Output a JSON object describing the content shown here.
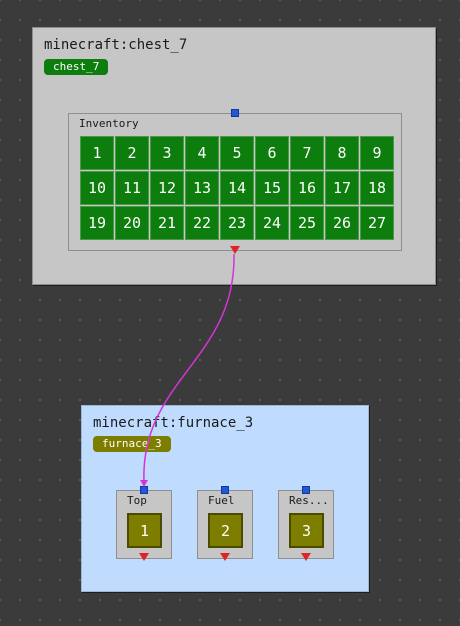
{
  "chest": {
    "title": "minecraft:chest_7",
    "tag": "chest_7",
    "inventory_label": "Inventory",
    "slots": [
      "1",
      "2",
      "3",
      "4",
      "5",
      "6",
      "7",
      "8",
      "9",
      "10",
      "11",
      "12",
      "13",
      "14",
      "15",
      "16",
      "17",
      "18",
      "19",
      "20",
      "21",
      "22",
      "23",
      "24",
      "25",
      "26",
      "27"
    ]
  },
  "furnace": {
    "title": "minecraft:furnace_3",
    "tag": "furnace_3",
    "slots": [
      {
        "label": "Top",
        "value": "1"
      },
      {
        "label": "Fuel",
        "value": "2"
      },
      {
        "label": "Res...",
        "value": "3"
      }
    ]
  },
  "colors": {
    "chest_slot": "#0d7d0d",
    "furnace_slot": "#7d7d00",
    "furnace_bg": "#bfdcff",
    "wire": "#d633d6",
    "input_port": "#2158d6",
    "output_port": "#e02424"
  }
}
